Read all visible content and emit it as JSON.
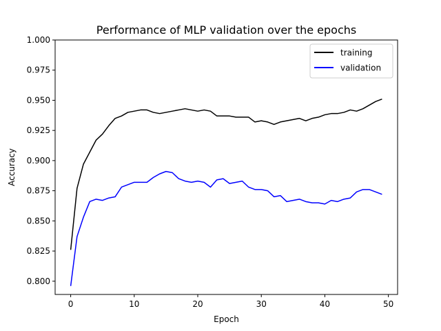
{
  "chart_data": {
    "type": "line",
    "title": "Performance of MLP validation over the epochs",
    "xlabel": "Epoch",
    "ylabel": "Accuracy",
    "xlim": [
      -2.45,
      51.45
    ],
    "ylim": [
      0.789,
      1.0
    ],
    "xticks": [
      0,
      10,
      20,
      30,
      40,
      50
    ],
    "yticks": [
      0.8,
      0.825,
      0.85,
      0.875,
      0.9,
      0.925,
      0.95,
      0.975,
      1.0
    ],
    "ytick_labels": [
      "0.800",
      "0.825",
      "0.850",
      "0.875",
      "0.900",
      "0.925",
      "0.950",
      "0.975",
      "1.000"
    ],
    "grid": false,
    "legend_position": "top-right",
    "x": [
      0,
      1,
      2,
      3,
      4,
      5,
      6,
      7,
      8,
      9,
      10,
      11,
      12,
      13,
      14,
      15,
      16,
      17,
      18,
      19,
      20,
      21,
      22,
      23,
      24,
      25,
      26,
      27,
      28,
      29,
      30,
      31,
      32,
      33,
      34,
      35,
      36,
      37,
      38,
      39,
      40,
      41,
      42,
      43,
      44,
      45,
      46,
      47,
      48,
      49
    ],
    "series": [
      {
        "name": "training",
        "color": "#000000",
        "values": [
          0.826,
          0.877,
          0.897,
          0.907,
          0.917,
          0.922,
          0.929,
          0.935,
          0.937,
          0.94,
          0.941,
          0.942,
          0.942,
          0.94,
          0.939,
          0.94,
          0.941,
          0.942,
          0.943,
          0.942,
          0.941,
          0.942,
          0.941,
          0.937,
          0.937,
          0.937,
          0.936,
          0.936,
          0.936,
          0.932,
          0.933,
          0.932,
          0.93,
          0.932,
          0.933,
          0.934,
          0.935,
          0.933,
          0.935,
          0.936,
          0.938,
          0.939,
          0.939,
          0.94,
          0.942,
          0.941,
          0.943,
          0.946,
          0.949,
          0.951
        ]
      },
      {
        "name": "validation",
        "color": "#0000ff",
        "values": [
          0.796,
          0.837,
          0.853,
          0.866,
          0.868,
          0.867,
          0.869,
          0.87,
          0.878,
          0.88,
          0.882,
          0.882,
          0.882,
          0.886,
          0.889,
          0.891,
          0.89,
          0.885,
          0.883,
          0.882,
          0.883,
          0.882,
          0.878,
          0.884,
          0.885,
          0.881,
          0.882,
          0.883,
          0.878,
          0.876,
          0.876,
          0.875,
          0.87,
          0.871,
          0.866,
          0.867,
          0.868,
          0.866,
          0.865,
          0.865,
          0.864,
          0.867,
          0.866,
          0.868,
          0.869,
          0.874,
          0.876,
          0.876,
          0.874,
          0.872
        ]
      }
    ]
  }
}
